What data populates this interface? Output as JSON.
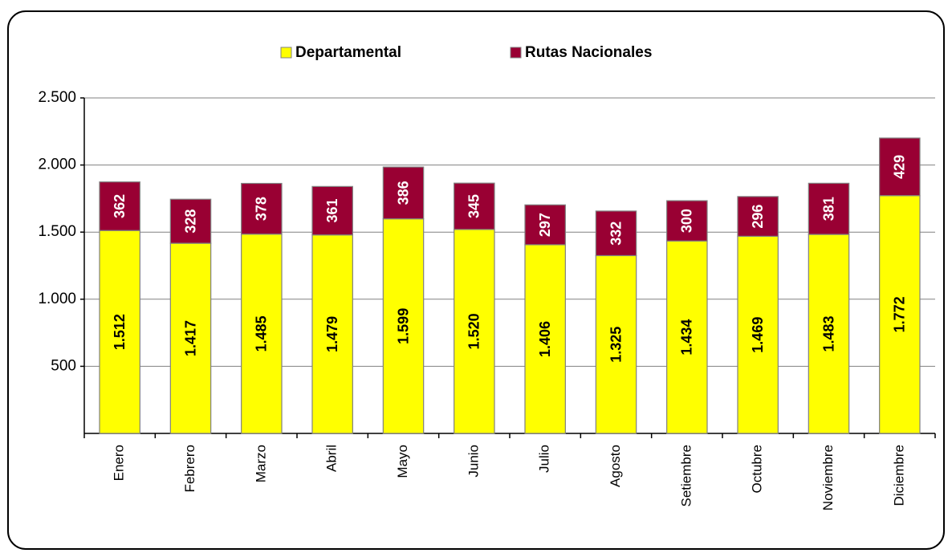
{
  "chart_data": {
    "type": "bar",
    "stacked": true,
    "categories": [
      "Enero",
      "Febrero",
      "Marzo",
      "Abril",
      "Mayo",
      "Junio",
      "Julio",
      "Agosto",
      "Setiembre",
      "Octubre",
      "Noviembre",
      "Diciembre"
    ],
    "series": [
      {
        "name": "Departamental",
        "color": "#ffff00",
        "values": [
          1512,
          1417,
          1485,
          1479,
          1599,
          1520,
          1406,
          1325,
          1434,
          1469,
          1483,
          1772
        ],
        "value_labels": [
          "1.512",
          "1.417",
          "1.485",
          "1.479",
          "1.599",
          "1.520",
          "1.406",
          "1.325",
          "1.434",
          "1.469",
          "1.483",
          "1.772"
        ]
      },
      {
        "name": "Rutas Nacionales",
        "color": "#990033",
        "values": [
          362,
          328,
          378,
          361,
          386,
          345,
          297,
          332,
          300,
          296,
          381,
          429
        ]
      }
    ],
    "ylim": [
      0,
      2500
    ],
    "yticks": [
      500,
      {
        "value": 1000,
        "label": "1.000"
      },
      {
        "value": 1500,
        "label": "1.500"
      },
      {
        "value": 2000,
        "label": "2.000"
      },
      {
        "value": 2500,
        "label": "2.500"
      }
    ],
    "grid": true,
    "legend": "top"
  }
}
